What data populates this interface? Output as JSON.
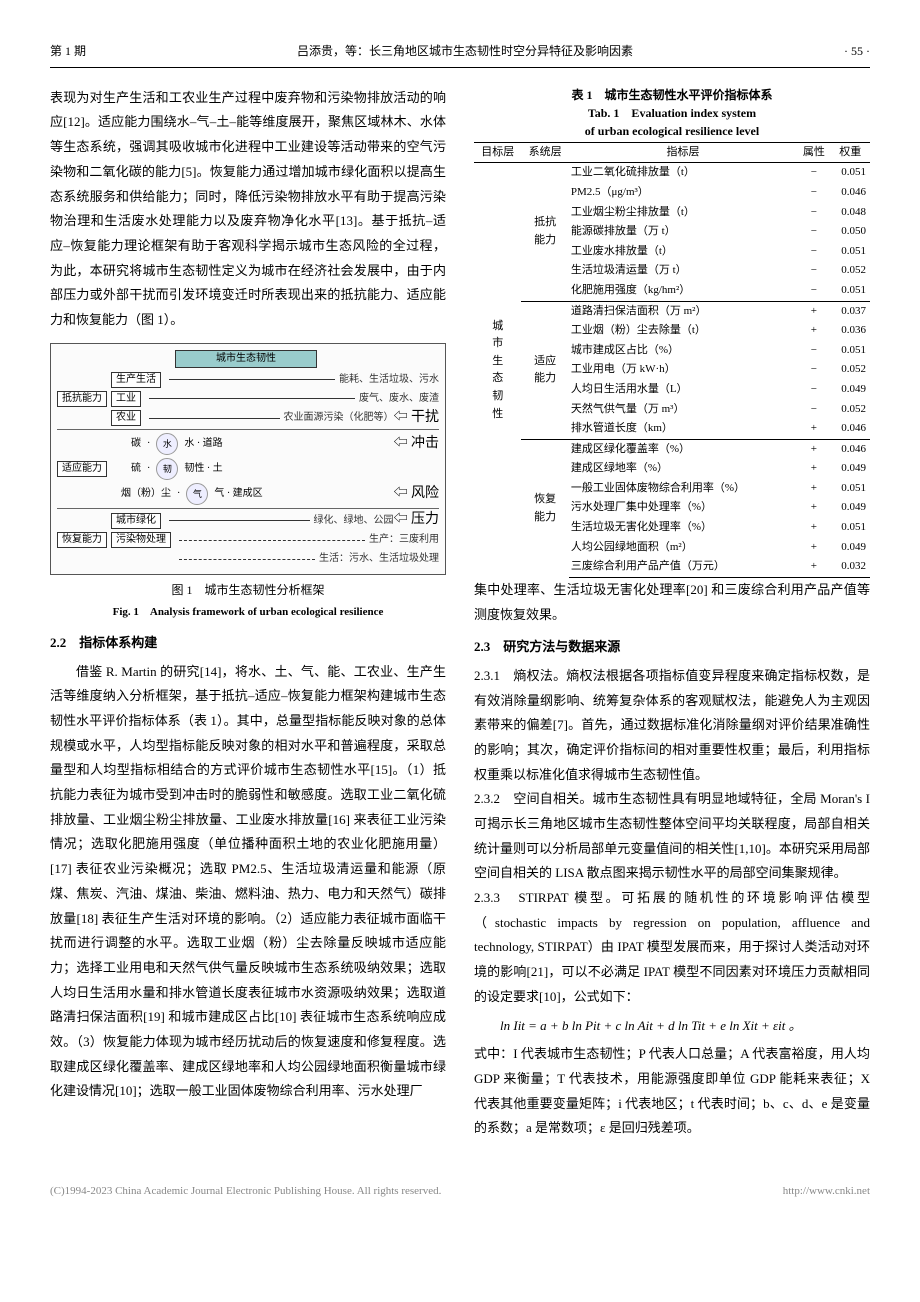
{
  "header": {
    "issue": "第 1 期",
    "running": "吕添贵，等：长三角地区城市生态韧性时空分异特征及影响因素",
    "page": "· 55 ·"
  },
  "left": {
    "p1": "表现为对生产生活和工农业生产过程中废弃物和污染物排放活动的响应[12]。适应能力围绕水–气–土–能等维度展开，聚焦区域林木、水体等生态系统，强调其吸收城市化进程中工业建设等活动带来的空气污染物和二氧化碳的能力[5]。恢复能力通过增加城市绿化面积以提高生态系统服务和供给能力；同时，降低污染物排放水平有助于提高污染物治理和生活废水处理能力以及废弃物净化水平[13]。基于抵抗–适应–恢复能力理论框架有助于客观科学揭示城市生态风险的全过程，为此，本研究将城市生态韧性定义为城市在经济社会发展中，由于内部压力或外部干扰而引发环境变迁时所表现出来的抵抗能力、适应能力和恢复能力（图 1）。",
    "fig1": {
      "top": "城市生态韧性",
      "rows": [
        {
          "l": "抵抗能力",
          "m1": "生产生活",
          "m2": "能耗、生活垃圾、污水",
          "arrow": ""
        },
        {
          "l": "",
          "m1": "工业",
          "m2": "废气、废水、废渣",
          "arrow": ""
        },
        {
          "l": "",
          "m1": "农业",
          "m2": "农业面源污染（化肥等）",
          "arrow": "⇦ 干扰"
        },
        {
          "l": "适应能力",
          "m1": "碳",
          "m2": "水 · 道路",
          "arrow": "⇦ 冲击"
        },
        {
          "l": "",
          "m1": "硫",
          "m2": "韧性 · 土",
          "arrow": ""
        },
        {
          "l": "",
          "m1": "烟（粉）尘",
          "m2": "气 · 建成区",
          "arrow": "⇦ 风险"
        },
        {
          "l": "恢复能力",
          "m1": "城市绿化",
          "m2": "绿化、绿地、公园",
          "arrow": "⇦ 压力"
        },
        {
          "l": "",
          "m1": "污染物处理",
          "m2": "生产：三废利用",
          "arrow": ""
        },
        {
          "l": "",
          "m1": "",
          "m2": "生活：污水、生活垃圾处理",
          "arrow": ""
        }
      ],
      "cap_zh": "图 1　城市生态韧性分析框架",
      "cap_en": "Fig. 1　Analysis framework of urban ecological resilience"
    },
    "h22": "2.2　指标体系构建",
    "p2": "借鉴 R. Martin 的研究[14]，将水、土、气、能、工农业、生产生活等维度纳入分析框架，基于抵抗–适应–恢复能力框架构建城市生态韧性水平评价指标体系（表 1）。其中，总量型指标能反映对象的总体规模或水平，人均型指标能反映对象的相对水平和普遍程度，采取总量型和人均型指标相结合的方式评价城市生态韧性水平[15]。（1）抵抗能力表征为城市受到冲击时的脆弱性和敏感度。选取工业二氧化硫排放量、工业烟尘粉尘排放量、工业废水排放量[16] 来表征工业污染情况；选取化肥施用强度（单位播种面积土地的农业化肥施用量）[17] 表征农业污染概况；选取 PM2.5、生活垃圾清运量和能源（原煤、焦炭、汽油、煤油、柴油、燃料油、热力、电力和天然气）碳排放量[18] 表征生产生活对环境的影响。（2）适应能力表征城市面临干扰而进行调整的水平。选取工业烟（粉）尘去除量反映城市适应能力；选择工业用电和天然气供气量反映城市生态系统吸纳效果；选取人均日生活用水量和排水管道长度表征城市水资源吸纳效果；选取道路清扫保洁面积[19] 和城市建成区占比[10] 表征城市生态系统响应成效。（3）恢复能力体现为城市经历扰动后的恢复速度和修复程度。选取建成区绿化覆盖率、建成区绿地率和人均公园绿地面积衡量城市绿化建设情况[10]；选取一般工业固体废物综合利用率、污水处理厂"
  },
  "right": {
    "tbl1": {
      "cap_zh": "表 1　城市生态韧性水平评价指标体系",
      "cap_en1": "Tab. 1　Evaluation index system",
      "cap_en2": "of urban ecological resilience level",
      "head": [
        "目标层",
        "系统层",
        "指标层",
        "属性",
        "权重"
      ],
      "target": "城市生态韧性",
      "groups": [
        {
          "sys": "抵抗能力",
          "rows": [
            {
              "ind": "工业二氧化硫排放量（t）",
              "attr": "−",
              "w": "0.051"
            },
            {
              "ind": "PM2.5（μg/m³）",
              "attr": "−",
              "w": "0.046"
            },
            {
              "ind": "工业烟尘粉尘排放量（t）",
              "attr": "−",
              "w": "0.048"
            },
            {
              "ind": "能源碳排放量（万 t）",
              "attr": "−",
              "w": "0.050"
            },
            {
              "ind": "工业废水排放量（t）",
              "attr": "−",
              "w": "0.051"
            },
            {
              "ind": "生活垃圾清运量（万 t）",
              "attr": "−",
              "w": "0.052"
            },
            {
              "ind": "化肥施用强度（kg/hm²）",
              "attr": "−",
              "w": "0.051"
            }
          ]
        },
        {
          "sys": "适应能力",
          "rows": [
            {
              "ind": "道路清扫保洁面积（万 m²）",
              "attr": "+",
              "w": "0.037"
            },
            {
              "ind": "工业烟（粉）尘去除量（t）",
              "attr": "+",
              "w": "0.036"
            },
            {
              "ind": "城市建成区占比（%）",
              "attr": "−",
              "w": "0.051"
            },
            {
              "ind": "工业用电（万 kW·h）",
              "attr": "−",
              "w": "0.052"
            },
            {
              "ind": "人均日生活用水量（L）",
              "attr": "−",
              "w": "0.049"
            },
            {
              "ind": "天然气供气量（万 m³）",
              "attr": "−",
              "w": "0.052"
            },
            {
              "ind": "排水管道长度（km）",
              "attr": "+",
              "w": "0.046"
            }
          ]
        },
        {
          "sys": "恢复能力",
          "rows": [
            {
              "ind": "建成区绿化覆盖率（%）",
              "attr": "+",
              "w": "0.046"
            },
            {
              "ind": "建成区绿地率（%）",
              "attr": "+",
              "w": "0.049"
            },
            {
              "ind": "一般工业固体废物综合利用率（%）",
              "attr": "+",
              "w": "0.051"
            },
            {
              "ind": "污水处理厂集中处理率（%）",
              "attr": "+",
              "w": "0.049"
            },
            {
              "ind": "生活垃圾无害化处理率（%）",
              "attr": "+",
              "w": "0.051"
            },
            {
              "ind": "人均公园绿地面积（m²）",
              "attr": "+",
              "w": "0.049"
            },
            {
              "ind": "三废综合利用产品产值（万元）",
              "attr": "+",
              "w": "0.032"
            }
          ]
        }
      ]
    },
    "p0": "集中处理率、生活垃圾无害化处理率[20] 和三废综合利用产品产值等测度恢复效果。",
    "h23": "2.3　研究方法与数据来源",
    "p231": "2.3.1　熵权法。熵权法根据各项指标值变异程度来确定指标权数，是有效消除量纲影响、统筹复杂体系的客观赋权法，能避免人为主观因素带来的偏差[7]。首先，通过数据标准化消除量纲对评价结果准确性的影响；其次，确定评价指标间的相对重要性权重；最后，利用指标权重乘以标准化值求得城市生态韧性值。",
    "p232": "2.3.2　空间自相关。城市生态韧性具有明显地域特征，全局 Moran's I 可揭示长三角地区城市生态韧性整体空间平均关联程度，局部自相关统计量则可以分析局部单元变量值间的相关性[1,10]。本研究采用局部空间自相关的 LISA 散点图来揭示韧性水平的局部空间集聚规律。",
    "p233a": "2.3.3　STIRPAT 模型。可拓展的随机性的环境影响评估模型（stochastic impacts by regression on population, affluence and technology, STIRPAT）由 IPAT 模型发展而来，用于探讨人类活动对环境的影响[21]，可以不必满足 IPAT 模型不同因素对环境压力贡献相同的设定要求[10]，公式如下：",
    "formula": "ln Iit = a + b ln Pit + c ln Ait + d ln Tit + e ln Xit + εit  。",
    "p233b": "式中：I 代表城市生态韧性；P 代表人口总量；A 代表富裕度，用人均 GDP 来衡量；T 代表技术，用能源强度即单位 GDP 能耗来表征；X 代表其他重要变量矩阵；i 代表地区；t 代表时间；b、c、d、e 是变量的系数；a 是常数项；ε 是回归残差项。"
  },
  "footer": {
    "left": "(C)1994-2023 China Academic Journal Electronic Publishing House. All rights reserved.",
    "right": "http://www.cnki.net"
  }
}
